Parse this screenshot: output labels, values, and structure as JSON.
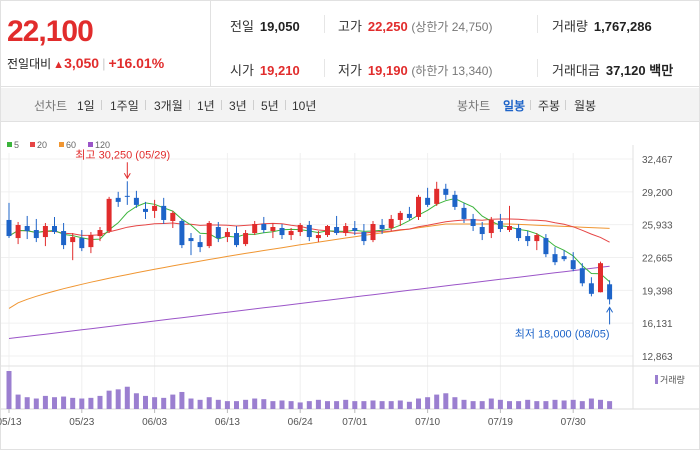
{
  "summary": {
    "price": "22,100",
    "change_label": "전일대비",
    "change_value": "3,050",
    "change_pct": "+16.01%"
  },
  "stats": {
    "prev_close": {
      "label": "전일",
      "value": "19,050"
    },
    "high": {
      "label": "고가",
      "value": "22,250",
      "sub": "(상한가 24,750)"
    },
    "volume": {
      "label": "거래량",
      "value": "1,767,286"
    },
    "open": {
      "label": "시가",
      "value": "19,210"
    },
    "low": {
      "label": "저가",
      "value": "19,190",
      "sub": "(하한가 13,340)"
    },
    "trade_amount": {
      "label": "거래대금",
      "value": "37,120",
      "unit": "백만"
    }
  },
  "tabs": {
    "line_label": "선차트",
    "periods": [
      "1일",
      "1주일",
      "3개월",
      "1년",
      "3년",
      "5년",
      "10년"
    ],
    "candle_label": "봉차트",
    "candles": [
      "일봉",
      "주봉",
      "월봉"
    ],
    "active_candle": "일봉"
  },
  "chart_data": {
    "type": "candlestick",
    "legend": [
      {
        "name": "5",
        "color": "#3cb43c"
      },
      {
        "name": "20",
        "color": "#e64646"
      },
      {
        "name": "60",
        "color": "#f09632"
      },
      {
        "name": "120",
        "color": "#9b55c8"
      }
    ],
    "y_ticks": [
      "32,467",
      "29,200",
      "25,933",
      "22,665",
      "19,398",
      "16,131",
      "12,863"
    ],
    "ylim": [
      12863,
      32467
    ],
    "x_ticks": [
      "05/13",
      "05/23",
      "06/03",
      "06/13",
      "06/24",
      "07/01",
      "07/10",
      "07/19",
      "07/30"
    ],
    "x_tick_index": [
      0,
      8,
      16,
      24,
      32,
      38,
      46,
      54,
      62
    ],
    "max_annotation": "최고 30,250 (05/29)",
    "max_index": 13,
    "max_value": 30250,
    "min_annotation": "최저 18,000 (08/05)",
    "min_index": 66,
    "min_value": 18000,
    "volume_label": "거래량",
    "ohlc": [
      [
        26400,
        28100,
        24600,
        24800
      ],
      [
        24600,
        26200,
        24000,
        25900
      ],
      [
        25800,
        26800,
        24500,
        25300
      ],
      [
        25400,
        26500,
        24200,
        24600
      ],
      [
        24700,
        26100,
        23800,
        25800
      ],
      [
        25800,
        26700,
        25000,
        25200
      ],
      [
        25300,
        26100,
        23500,
        23900
      ],
      [
        24200,
        25100,
        22400,
        24700
      ],
      [
        24600,
        25400,
        23300,
        23600
      ],
      [
        23700,
        25200,
        23100,
        24900
      ],
      [
        24800,
        25700,
        24300,
        25400
      ],
      [
        25300,
        28700,
        25100,
        28500
      ],
      [
        28600,
        29200,
        27700,
        28200
      ],
      [
        28800,
        30250,
        27900,
        28700
      ],
      [
        28600,
        29300,
        27600,
        27900
      ],
      [
        27500,
        28200,
        26500,
        27200
      ],
      [
        27300,
        28400,
        26600,
        27800
      ],
      [
        27800,
        28600,
        26000,
        26400
      ],
      [
        26300,
        27300,
        25600,
        27100
      ],
      [
        26300,
        26500,
        23600,
        23900
      ],
      [
        24600,
        25100,
        22900,
        24300
      ],
      [
        24200,
        24900,
        23200,
        23700
      ],
      [
        23800,
        26300,
        23600,
        26100
      ],
      [
        25700,
        26200,
        24200,
        24600
      ],
      [
        24700,
        25600,
        24200,
        25200
      ],
      [
        25100,
        25800,
        23700,
        23900
      ],
      [
        24000,
        25400,
        23800,
        25100
      ],
      [
        25100,
        26300,
        24900,
        26000
      ],
      [
        26000,
        26700,
        25100,
        25400
      ],
      [
        25300,
        26100,
        24600,
        25700
      ],
      [
        25600,
        26000,
        24500,
        24900
      ],
      [
        24900,
        25600,
        24400,
        25300
      ],
      [
        25200,
        26100,
        24800,
        25900
      ],
      [
        25900,
        26300,
        24300,
        24700
      ],
      [
        24600,
        25300,
        24200,
        24900
      ],
      [
        24900,
        25900,
        24700,
        25800
      ],
      [
        25700,
        26800,
        24900,
        25100
      ],
      [
        25100,
        26100,
        24800,
        25800
      ],
      [
        25600,
        26300,
        24900,
        25300
      ],
      [
        25200,
        26000,
        23900,
        24300
      ],
      [
        24400,
        26300,
        24200,
        26000
      ],
      [
        25900,
        26500,
        25000,
        25500
      ],
      [
        25600,
        26900,
        25300,
        26500
      ],
      [
        26400,
        27300,
        25800,
        27100
      ],
      [
        27000,
        27700,
        26400,
        26600
      ],
      [
        26700,
        28900,
        26400,
        28700
      ],
      [
        28600,
        29600,
        27700,
        27900
      ],
      [
        28000,
        30200,
        27800,
        29500
      ],
      [
        29500,
        30000,
        28400,
        28900
      ],
      [
        28900,
        29300,
        27400,
        27700
      ],
      [
        27600,
        28100,
        26100,
        26500
      ],
      [
        26500,
        27000,
        25300,
        25800
      ],
      [
        25700,
        26200,
        24400,
        25000
      ],
      [
        25100,
        26700,
        24600,
        26400
      ],
      [
        26300,
        27000,
        25200,
        25500
      ],
      [
        25400,
        27800,
        25200,
        25800
      ],
      [
        25600,
        26000,
        24300,
        24600
      ],
      [
        24800,
        25300,
        23800,
        24300
      ],
      [
        24300,
        25100,
        23400,
        24900
      ],
      [
        24600,
        25000,
        22700,
        23000
      ],
      [
        23000,
        23700,
        21900,
        22200
      ],
      [
        22800,
        23400,
        22300,
        22500
      ],
      [
        22400,
        23200,
        21300,
        21500
      ],
      [
        21600,
        22100,
        19800,
        20100
      ],
      [
        20100,
        20700,
        18800,
        19050
      ],
      [
        19210,
        22250,
        19190,
        22100
      ],
      [
        20000,
        20400,
        18000,
        18500
      ]
    ],
    "volume_values": [
      58,
      22,
      18,
      16,
      20,
      18,
      19,
      17,
      16,
      17,
      20,
      28,
      30,
      34,
      24,
      20,
      18,
      17,
      22,
      26,
      16,
      14,
      18,
      14,
      12,
      12,
      14,
      16,
      15,
      12,
      13,
      12,
      10,
      12,
      14,
      12,
      12,
      14,
      12,
      12,
      13,
      12,
      12,
      13,
      11,
      16,
      18,
      22,
      24,
      18,
      14,
      12,
      12,
      16,
      14,
      12,
      12,
      14,
      12,
      12,
      14,
      13,
      14,
      12,
      16,
      14,
      12
    ]
  }
}
